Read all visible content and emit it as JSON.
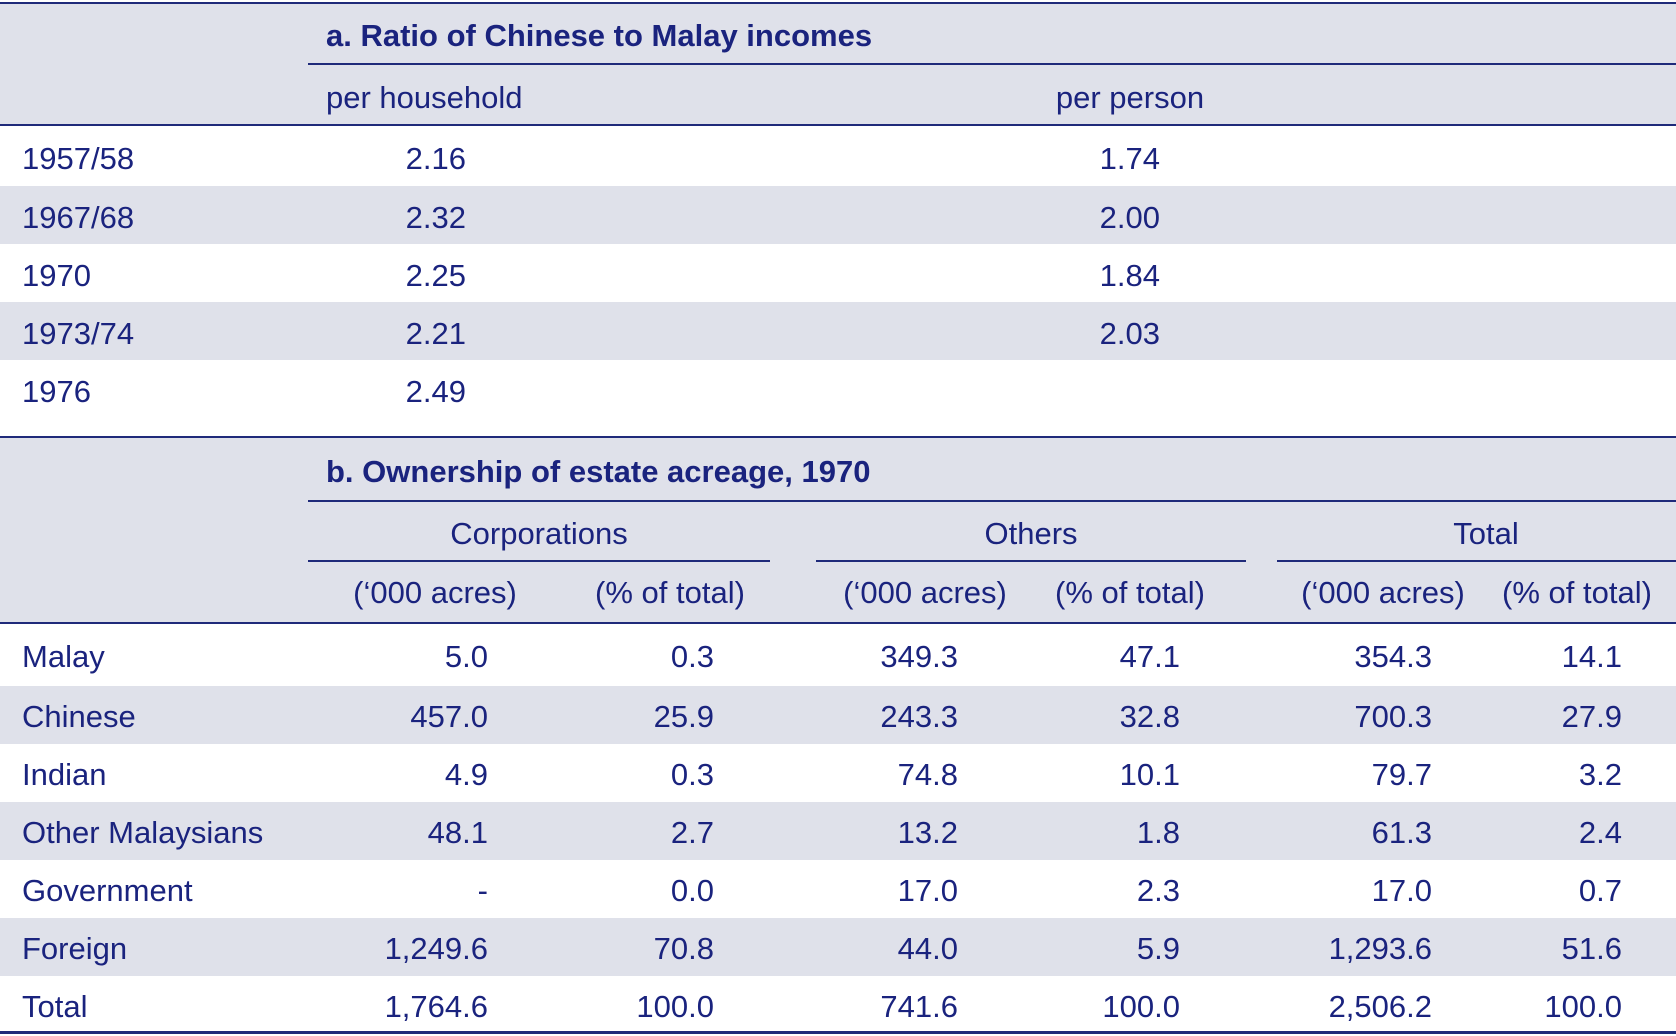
{
  "section_a": {
    "title": "a. Ratio of Chinese to Malay incomes",
    "col_household": "per household",
    "col_person": "per person",
    "rows": [
      {
        "year": "1957/58",
        "household": "2.16",
        "person": "1.74"
      },
      {
        "year": "1967/68",
        "household": "2.32",
        "person": "2.00"
      },
      {
        "year": "1970",
        "household": "2.25",
        "person": "1.84"
      },
      {
        "year": "1973/74",
        "household": "2.21",
        "person": "2.03"
      },
      {
        "year": "1976",
        "household": "2.49",
        "person": ""
      }
    ]
  },
  "section_b": {
    "title": "b. Ownership of estate acreage, 1970",
    "groups": [
      "Corporations",
      "Others",
      "Total"
    ],
    "sub_acres": "(‘000 acres)",
    "sub_pct": "(% of total)",
    "rows": [
      {
        "label": "Malay",
        "corp_acres": "5.0",
        "corp_pct": "0.3",
        "oth_acres": "349.3",
        "oth_pct": "47.1",
        "tot_acres": "354.3",
        "tot_pct": "14.1"
      },
      {
        "label": "Chinese",
        "corp_acres": "457.0",
        "corp_pct": "25.9",
        "oth_acres": "243.3",
        "oth_pct": "32.8",
        "tot_acres": "700.3",
        "tot_pct": "27.9"
      },
      {
        "label": "Indian",
        "corp_acres": "4.9",
        "corp_pct": "0.3",
        "oth_acres": "74.8",
        "oth_pct": "10.1",
        "tot_acres": "79.7",
        "tot_pct": "3.2"
      },
      {
        "label": "Other Malaysians",
        "corp_acres": "48.1",
        "corp_pct": "2.7",
        "oth_acres": "13.2",
        "oth_pct": "1.8",
        "tot_acres": "61.3",
        "tot_pct": "2.4"
      },
      {
        "label": "Government",
        "corp_acres": "-",
        "corp_pct": "0.0",
        "oth_acres": "17.0",
        "oth_pct": "2.3",
        "tot_acres": "17.0",
        "tot_pct": "0.7"
      },
      {
        "label": "Foreign",
        "corp_acres": "1,249.6",
        "corp_pct": "70.8",
        "oth_acres": "44.0",
        "oth_pct": "5.9",
        "tot_acres": "1,293.6",
        "tot_pct": "51.6"
      },
      {
        "label": "Total",
        "corp_acres": "1,764.6",
        "corp_pct": "100.0",
        "oth_acres": "741.6",
        "oth_pct": "100.0",
        "tot_acres": "2,506.2",
        "tot_pct": "100.0"
      }
    ]
  },
  "colors": {
    "text": "#1a237e",
    "shade": "#dfe1ea",
    "rule": "#1f2a7a"
  }
}
